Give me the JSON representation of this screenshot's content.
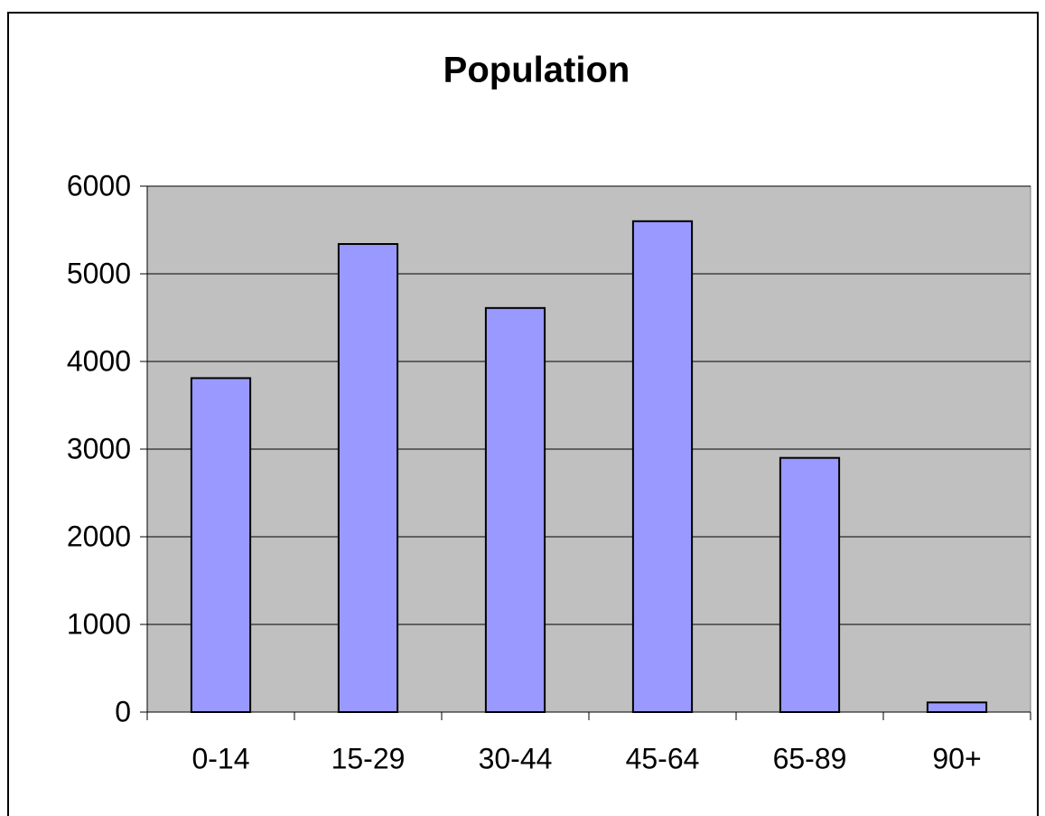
{
  "chart_data": {
    "type": "bar",
    "title": "Population",
    "categories": [
      "0-14",
      "15-29",
      "30-44",
      "45-64",
      "65-89",
      "90+"
    ],
    "values": [
      3810,
      5340,
      4610,
      5600,
      2900,
      110
    ],
    "color": "#9999ff",
    "ylim": [
      0,
      6000
    ],
    "yticks": [
      0,
      1000,
      2000,
      3000,
      4000,
      5000,
      6000
    ],
    "grid": true
  }
}
